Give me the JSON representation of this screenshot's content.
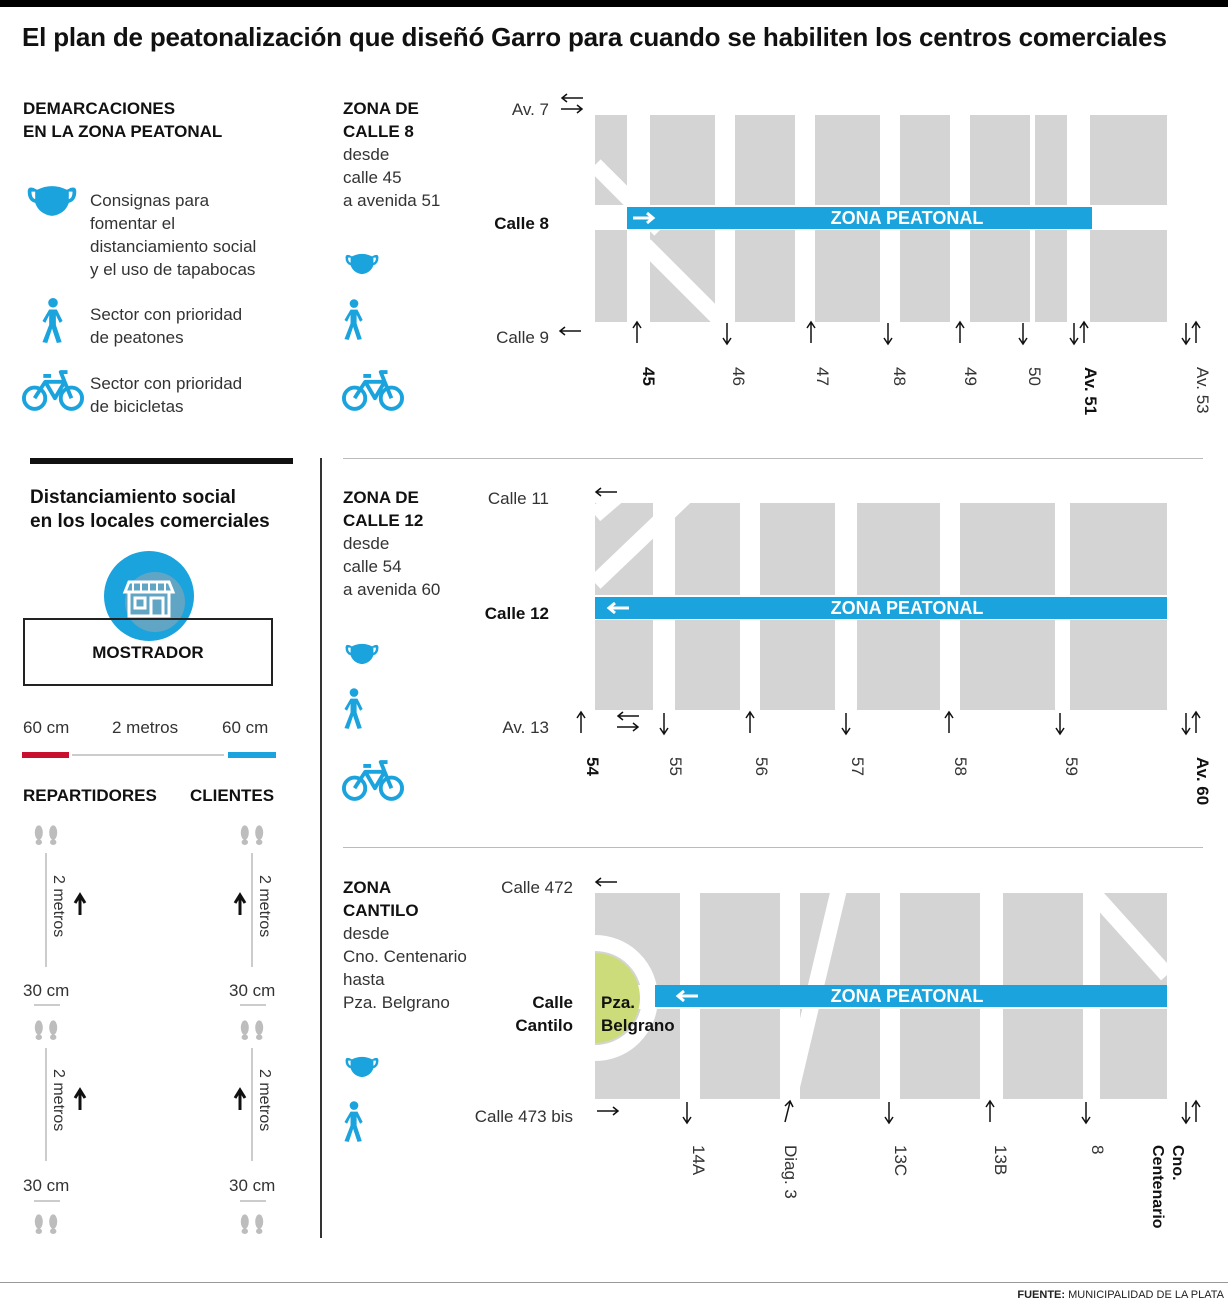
{
  "title": "El plan de peatonalización que diseñó Garro para cuando se habiliten los centros comerciales",
  "legend": {
    "heading_line1": "DEMARCACIONES",
    "heading_line2": "EN LA ZONA PEATONAL",
    "items": [
      {
        "icon": "mask-icon",
        "lines": [
          "Consignas para",
          "fomentar el",
          "distanciamiento social",
          "y el uso de tapabocas"
        ]
      },
      {
        "icon": "pedestrian-icon",
        "lines": [
          "Sector con prioridad",
          "de peatones"
        ]
      },
      {
        "icon": "bicycle-icon",
        "lines": [
          "Sector con prioridad",
          "de bicicletas"
        ]
      }
    ]
  },
  "distancing": {
    "heading_line1": "Distanciamiento social",
    "heading_line2": "en los locales comerciales",
    "counter_label": "MOSTRADOR",
    "left_width": "60 cm",
    "middle_width": "2 metros",
    "right_width": "60 cm",
    "left_group": "REPARTIDORES",
    "right_group": "CLIENTES",
    "gap_label": "2 metros",
    "step_label": "30 cm"
  },
  "zones": [
    {
      "name_lines": [
        "ZONA DE",
        "CALLE 8"
      ],
      "desc_lines": [
        "desde",
        "calle 45",
        "a avenida 51"
      ],
      "top_street": "Av. 7",
      "main_street": "Calle 8",
      "bottom_street": "Calle 9",
      "banner": "ZONA PEATONAL",
      "cross_streets": [
        {
          "label": "45",
          "bold": true
        },
        {
          "label": "46",
          "bold": false
        },
        {
          "label": "47",
          "bold": false
        },
        {
          "label": "48",
          "bold": false
        },
        {
          "label": "49",
          "bold": false
        },
        {
          "label": "50",
          "bold": false
        },
        {
          "label": "Av. 51",
          "bold": true
        },
        {
          "label": "Av. 53",
          "bold": false
        }
      ]
    },
    {
      "name_lines": [
        "ZONA DE",
        "CALLE 12"
      ],
      "desc_lines": [
        "desde",
        "calle 54",
        "a avenida 60"
      ],
      "top_street": "Calle 11",
      "main_street": "Calle 12",
      "bottom_street": "Av. 13",
      "banner": "ZONA PEATONAL",
      "cross_streets": [
        {
          "label": "54",
          "bold": true
        },
        {
          "label": "55",
          "bold": false
        },
        {
          "label": "56",
          "bold": false
        },
        {
          "label": "57",
          "bold": false
        },
        {
          "label": "58",
          "bold": false
        },
        {
          "label": "59",
          "bold": false
        },
        {
          "label": "Av. 60",
          "bold": true
        }
      ]
    },
    {
      "name_lines": [
        "ZONA",
        "CANTILO"
      ],
      "desc_lines": [
        "desde",
        "Cno. Centenario",
        "hasta",
        "Pza. Belgrano"
      ],
      "top_street": "Calle 472",
      "main_street_lines": [
        "Calle",
        "Cantilo"
      ],
      "plaza_lines": [
        "Pza.",
        "Belgrano"
      ],
      "bottom_street": "Calle 473 bis",
      "banner": "ZONA PEATONAL",
      "cross_streets": [
        {
          "label": "14A",
          "bold": false
        },
        {
          "label": "Diag. 3",
          "bold": false
        },
        {
          "label": "13C",
          "bold": false
        },
        {
          "label": "13B",
          "bold": false
        },
        {
          "label": "8",
          "bold": false
        },
        {
          "label": "Cno. Centenario",
          "bold": true
        }
      ]
    }
  ],
  "source_label": "FUENTE:",
  "source_value": "MUNICIPALIDAD DE LA PLATA",
  "colors": {
    "accent": "#1aa3dd",
    "block": "#d4d4d4",
    "red": "#c8102e",
    "plaza": "#cddc7a"
  }
}
